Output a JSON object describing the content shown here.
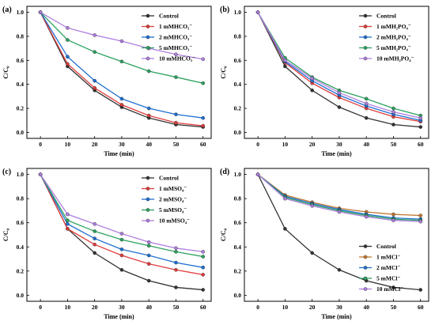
{
  "chart_data": [
    {
      "panel": "(a)",
      "type": "line",
      "xlabel": "Time (min)",
      "ylabel": "C/C₀",
      "x": [
        0,
        10,
        20,
        30,
        40,
        50,
        60
      ],
      "xlim": [
        -5,
        63
      ],
      "ylim": [
        -0.05,
        1.05
      ],
      "xticks": [
        0,
        10,
        20,
        30,
        40,
        50,
        60
      ],
      "yticks": [
        0.0,
        0.2,
        0.4,
        0.6,
        0.8,
        1.0
      ],
      "legend_position": "top-right",
      "series": [
        {
          "name": "Control",
          "color": "#333333",
          "values": [
            1.0,
            0.55,
            0.35,
            0.21,
            0.12,
            0.065,
            0.045
          ]
        },
        {
          "name": "1 mMHCO₃⁻",
          "color": "#e03c3c",
          "values": [
            1.0,
            0.57,
            0.37,
            0.23,
            0.14,
            0.08,
            0.055
          ]
        },
        {
          "name": "2 mMHCO₃⁻",
          "color": "#1f6fd1",
          "values": [
            1.0,
            0.63,
            0.43,
            0.28,
            0.2,
            0.15,
            0.12
          ]
        },
        {
          "name": "5 mMHCO₃⁻",
          "color": "#2ca25f",
          "values": [
            1.0,
            0.77,
            0.67,
            0.59,
            0.51,
            0.46,
            0.41
          ]
        },
        {
          "name": "10 mMHCO₃⁻",
          "color": "#b07fe0",
          "values": [
            1.0,
            0.87,
            0.81,
            0.76,
            0.7,
            0.65,
            0.61
          ]
        }
      ]
    },
    {
      "panel": "(b)",
      "type": "line",
      "xlabel": "Time (min)",
      "ylabel": "C/C₀",
      "x": [
        0,
        10,
        20,
        30,
        40,
        50,
        60
      ],
      "xlim": [
        -5,
        63
      ],
      "ylim": [
        -0.05,
        1.05
      ],
      "xticks": [
        0,
        10,
        20,
        30,
        40,
        50,
        60
      ],
      "yticks": [
        0.0,
        0.2,
        0.4,
        0.6,
        0.8,
        1.0
      ],
      "legend_position": "top-right",
      "series": [
        {
          "name": "Control",
          "color": "#333333",
          "values": [
            1.0,
            0.55,
            0.35,
            0.21,
            0.12,
            0.065,
            0.045
          ]
        },
        {
          "name": "1 mMH₂PO₄⁻",
          "color": "#e03c3c",
          "values": [
            1.0,
            0.58,
            0.41,
            0.29,
            0.2,
            0.13,
            0.09
          ]
        },
        {
          "name": "2 mMH₂PO₄⁻",
          "color": "#1f6fd1",
          "values": [
            1.0,
            0.59,
            0.43,
            0.31,
            0.22,
            0.15,
            0.1
          ]
        },
        {
          "name": "5 mMH₂PO₄⁻",
          "color": "#2ca25f",
          "values": [
            1.0,
            0.62,
            0.46,
            0.35,
            0.28,
            0.2,
            0.14
          ]
        },
        {
          "name": "10 mMH₂PO₄⁻",
          "color": "#b07fe0",
          "values": [
            1.0,
            0.6,
            0.45,
            0.33,
            0.24,
            0.17,
            0.12
          ]
        }
      ]
    },
    {
      "panel": "(c)",
      "type": "line",
      "xlabel": "Time (min)",
      "ylabel": "C/C₀",
      "x": [
        0,
        10,
        20,
        30,
        40,
        50,
        60
      ],
      "xlim": [
        -5,
        63
      ],
      "ylim": [
        -0.05,
        1.05
      ],
      "xticks": [
        0,
        10,
        20,
        30,
        40,
        50,
        60
      ],
      "yticks": [
        0.0,
        0.2,
        0.4,
        0.6,
        0.8,
        1.0
      ],
      "legend_position": "top-right",
      "series": [
        {
          "name": "Control",
          "color": "#333333",
          "values": [
            1.0,
            0.55,
            0.35,
            0.21,
            0.12,
            0.065,
            0.045
          ]
        },
        {
          "name": "1 mMSO₄⁻",
          "color": "#e03c3c",
          "values": [
            1.0,
            0.55,
            0.42,
            0.33,
            0.26,
            0.21,
            0.17
          ]
        },
        {
          "name": "2 mMSO₄⁻",
          "color": "#1f6fd1",
          "values": [
            1.0,
            0.59,
            0.47,
            0.38,
            0.33,
            0.27,
            0.23
          ]
        },
        {
          "name": "5 mMSO₄⁻",
          "color": "#2ca25f",
          "values": [
            1.0,
            0.62,
            0.53,
            0.46,
            0.41,
            0.36,
            0.32
          ]
        },
        {
          "name": "10 mMSO₄⁻",
          "color": "#b07fe0",
          "values": [
            1.0,
            0.67,
            0.59,
            0.51,
            0.44,
            0.39,
            0.36
          ]
        }
      ]
    },
    {
      "panel": "(d)",
      "type": "line",
      "xlabel": "Time (min)",
      "ylabel": "C/C₀",
      "x": [
        0,
        10,
        20,
        30,
        40,
        50,
        60
      ],
      "xlim": [
        -5,
        63
      ],
      "ylim": [
        -0.05,
        1.05
      ],
      "xticks": [
        0,
        10,
        20,
        30,
        40,
        50,
        60
      ],
      "yticks": [
        0.0,
        0.2,
        0.4,
        0.6,
        0.8,
        1.0
      ],
      "legend_position": "bottom-right",
      "series": [
        {
          "name": "Control",
          "color": "#333333",
          "values": [
            1.0,
            0.55,
            0.35,
            0.21,
            0.12,
            0.065,
            0.045
          ]
        },
        {
          "name": "1 mMCl⁻",
          "color": "#c07830",
          "values": [
            1.0,
            0.83,
            0.77,
            0.72,
            0.69,
            0.67,
            0.66
          ]
        },
        {
          "name": "2 mMCl⁻",
          "color": "#1f6fd1",
          "values": [
            1.0,
            0.82,
            0.76,
            0.71,
            0.67,
            0.64,
            0.63
          ]
        },
        {
          "name": "5 mMCl⁻",
          "color": "#2ca25f",
          "values": [
            1.0,
            0.81,
            0.75,
            0.7,
            0.66,
            0.63,
            0.62
          ]
        },
        {
          "name": "10 mMCl⁻",
          "color": "#b07fe0",
          "values": [
            1.0,
            0.8,
            0.74,
            0.69,
            0.65,
            0.62,
            0.61
          ]
        }
      ]
    }
  ]
}
